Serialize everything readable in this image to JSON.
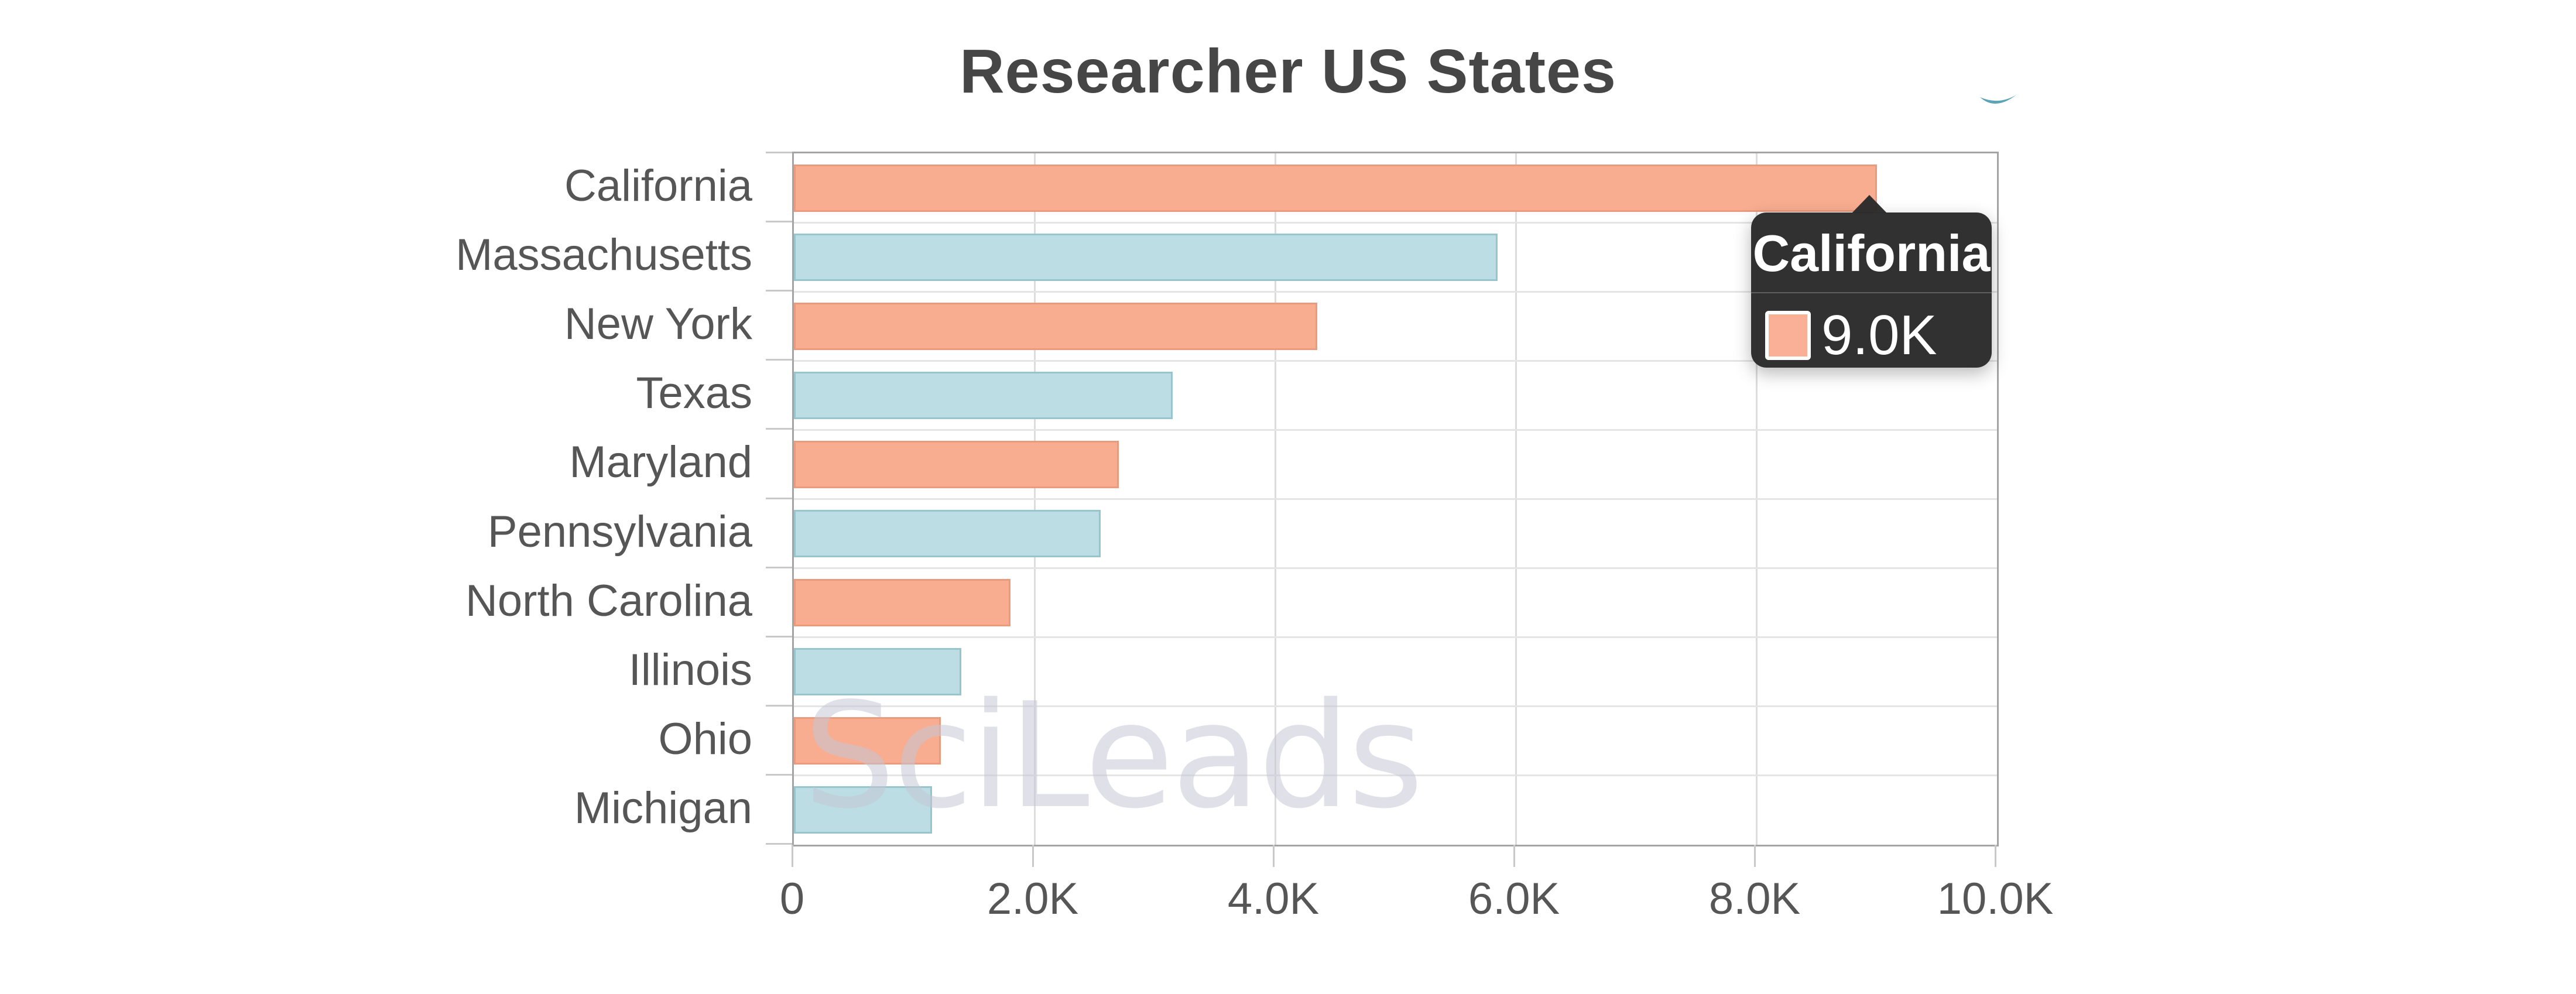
{
  "title": "Researcher US States",
  "watermark_text": "SciLeads",
  "tooltip": {
    "title": "California",
    "value_label": "9.0K",
    "swatch_color": "#F9B097"
  },
  "colors": {
    "salmon_fill": "#F8AD90",
    "salmon_border": "#E89B7E",
    "blue_fill": "#BBDDE3",
    "blue_border": "#98C4CC",
    "title_text": "#464646",
    "axis_text": "#565656",
    "grid_line": "#DCDCDC",
    "row_separator": "#E5E5E5",
    "plot_border": "#A4A4A4",
    "tooltip_bg": "#2A2A2A",
    "tooltip_text": "#FFFFFF",
    "watermark": "#C4C6D6",
    "swoosh": "#3E93A8"
  },
  "chart_data": {
    "type": "bar",
    "orientation": "horizontal",
    "title": "Researcher US States",
    "xlabel": "",
    "ylabel": "",
    "grid": "vertical-only",
    "legend": "none",
    "xlim": [
      0,
      10000
    ],
    "categories": [
      "California",
      "Massachusetts",
      "New York",
      "Texas",
      "Maryland",
      "Pennsylvania",
      "North Carolina",
      "Illinois",
      "Ohio",
      "Michigan"
    ],
    "values": [
      9000,
      5850,
      4350,
      3150,
      2700,
      2550,
      1800,
      1390,
      1220,
      1150
    ],
    "bar_colors": [
      "#F8AD90",
      "#BBDDE3",
      "#F8AD90",
      "#BBDDE3",
      "#F8AD90",
      "#BBDDE3",
      "#F8AD90",
      "#BBDDE3",
      "#F8AD90",
      "#BBDDE3"
    ],
    "bar_border_colors": [
      "#E89B7E",
      "#98C4CC",
      "#E89B7E",
      "#98C4CC",
      "#E89B7E",
      "#98C4CC",
      "#E89B7E",
      "#98C4CC",
      "#E89B7E",
      "#98C4CC"
    ],
    "x_ticks": [
      {
        "value": 0,
        "label": "0"
      },
      {
        "value": 2000,
        "label": "2.0K"
      },
      {
        "value": 4000,
        "label": "4.0K"
      },
      {
        "value": 6000,
        "label": "6.0K"
      },
      {
        "value": 8000,
        "label": "8.0K"
      },
      {
        "value": 10000,
        "label": "10.0K"
      }
    ]
  }
}
